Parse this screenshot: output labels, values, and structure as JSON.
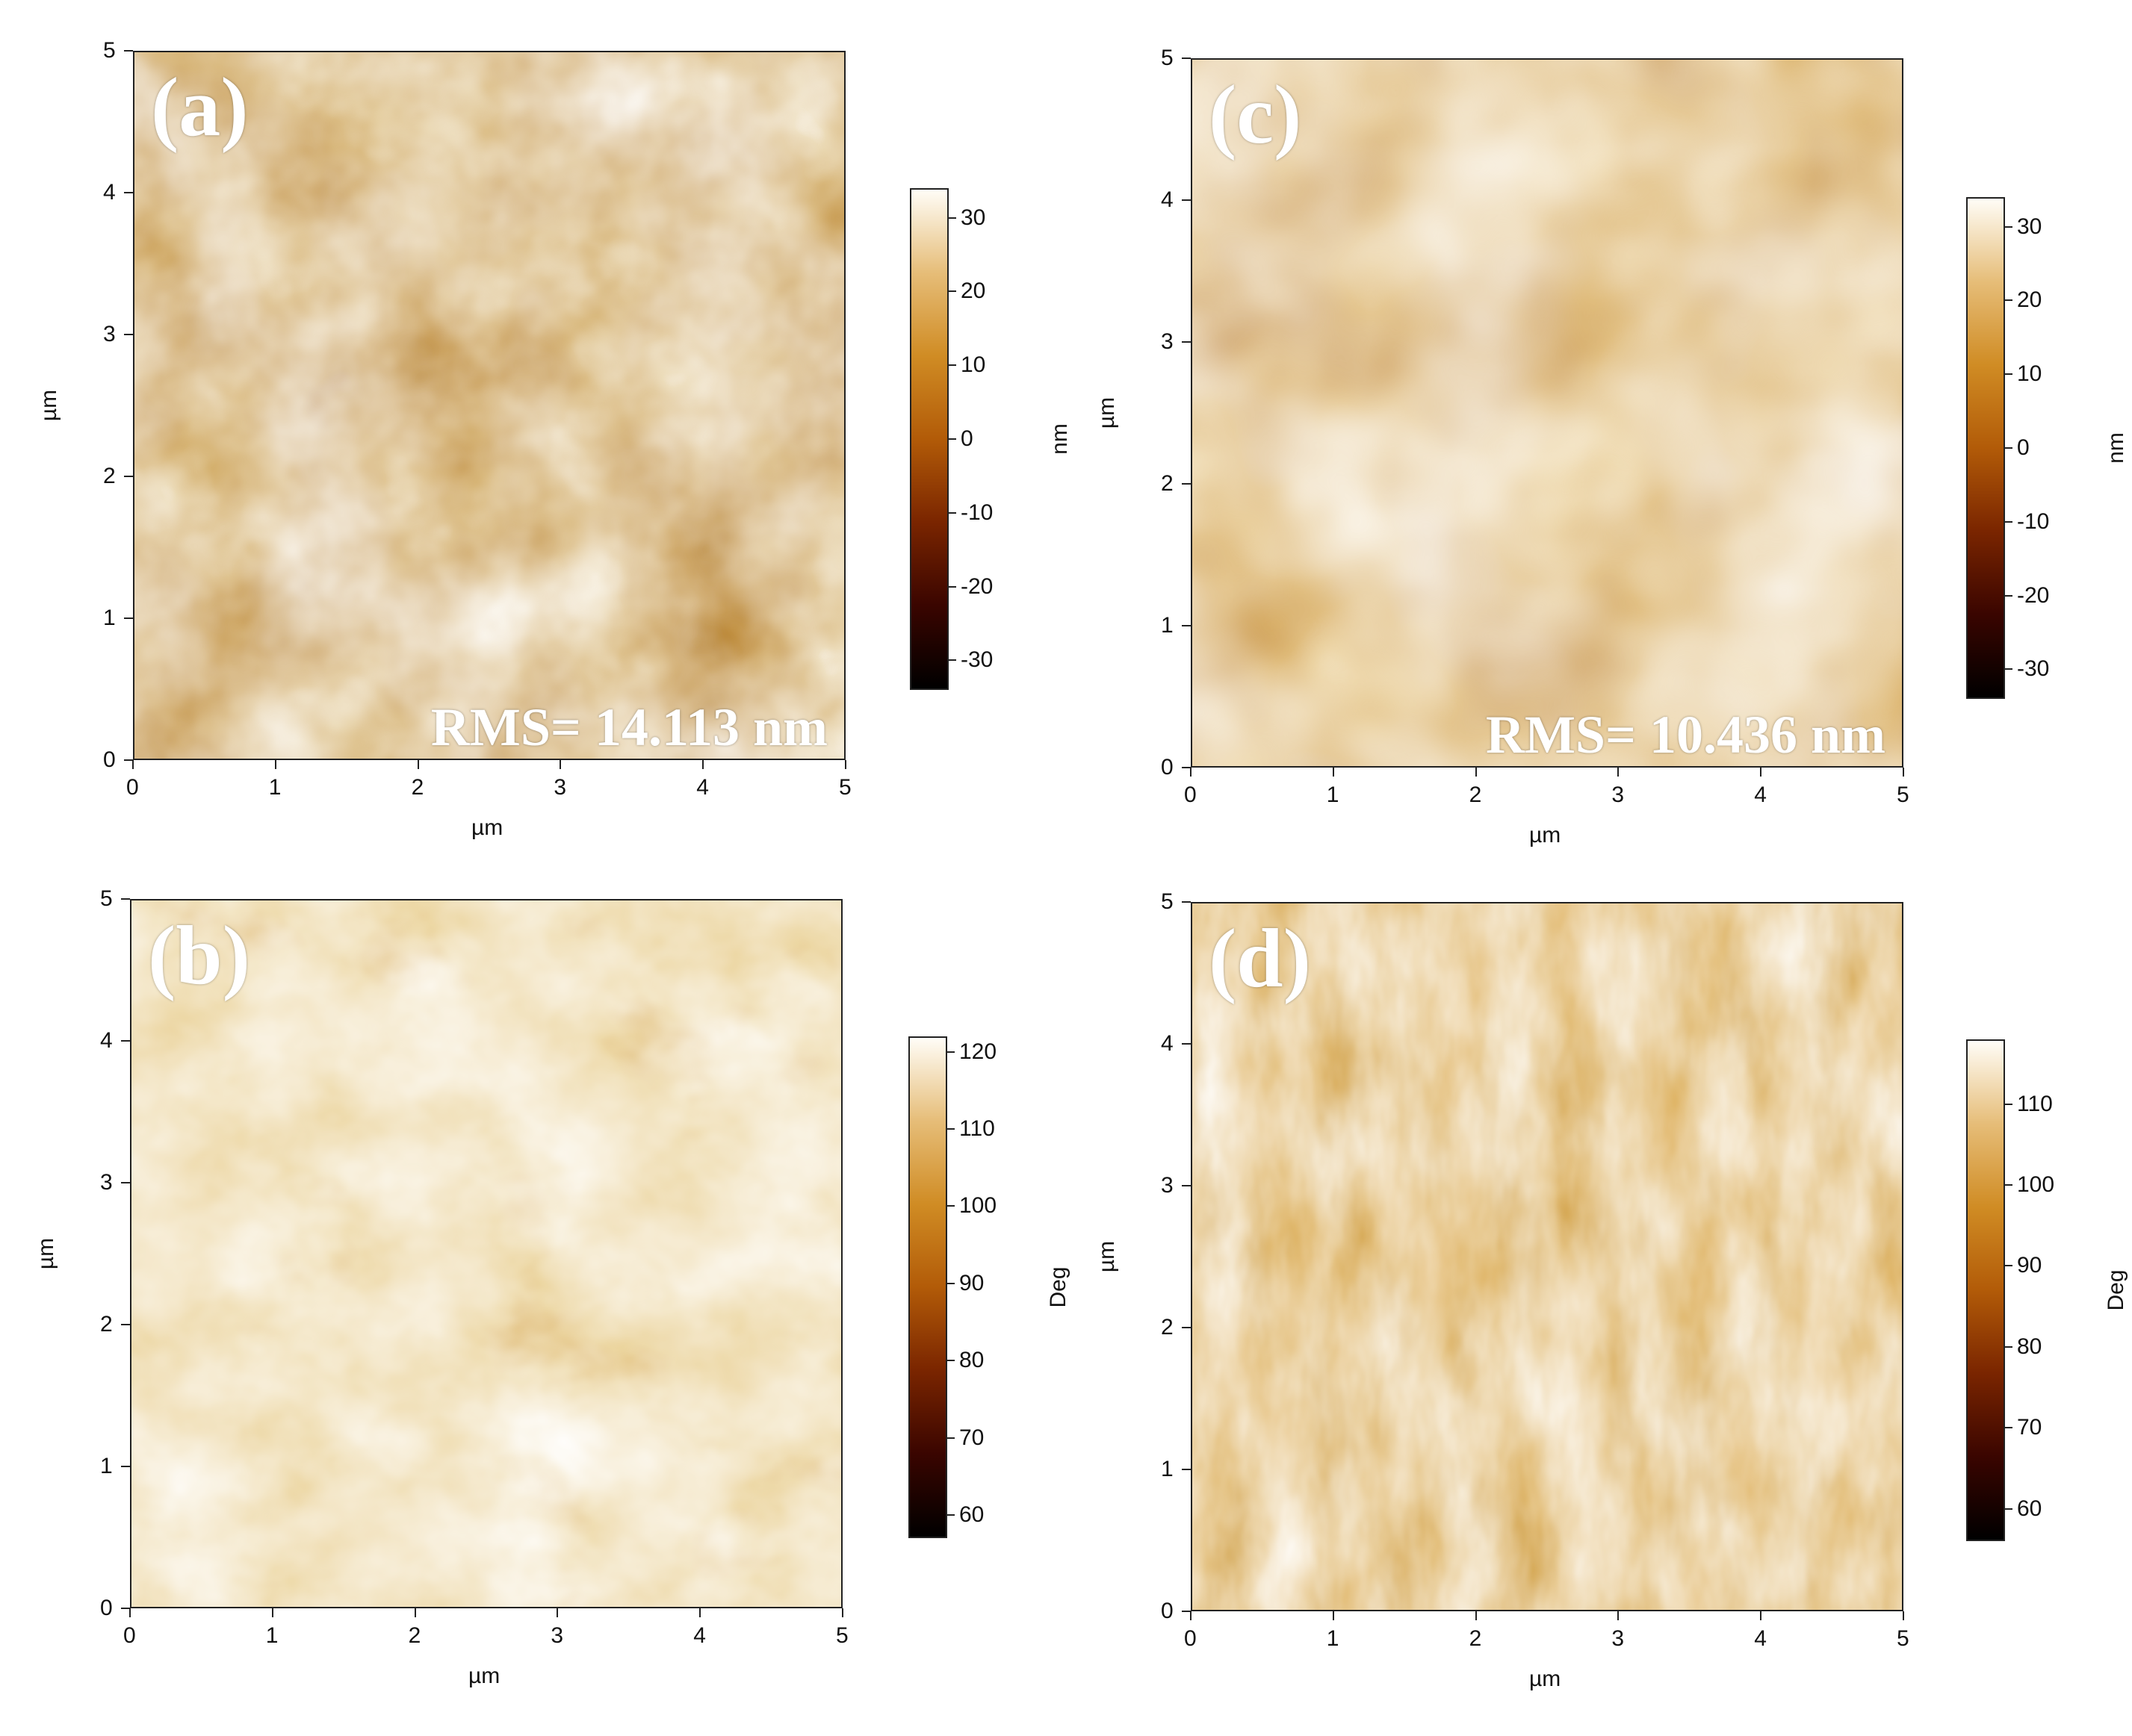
{
  "colors": {
    "afmhot": [
      "#000000",
      "#3a0500",
      "#7a2500",
      "#b25b08",
      "#d08c24",
      "#e6bd78",
      "#fffdf7"
    ]
  },
  "panels": [
    {
      "id": "a",
      "label": "(a)",
      "rms": "RMS= 14.113 nm",
      "xlabel": "µm",
      "ylabel": "µm",
      "xticks": [
        "0",
        "1",
        "2",
        "3",
        "4",
        "5"
      ],
      "yticks": [
        "0",
        "1",
        "2",
        "3",
        "4",
        "5"
      ],
      "colorbar": {
        "unit": "nm",
        "ticks": [
          "30",
          "20",
          "10",
          "0",
          "-10",
          "-20",
          "-30"
        ],
        "range": [
          -34,
          34
        ],
        "tick_values": [
          30,
          20,
          10,
          0,
          -10,
          -20,
          -30
        ]
      }
    },
    {
      "id": "c",
      "label": "(c)",
      "rms": "RMS= 10.436 nm",
      "xlabel": "µm",
      "ylabel": "µm",
      "xticks": [
        "0",
        "1",
        "2",
        "3",
        "4",
        "5"
      ],
      "yticks": [
        "0",
        "1",
        "2",
        "3",
        "4",
        "5"
      ],
      "colorbar": {
        "unit": "nm",
        "ticks": [
          "30",
          "20",
          "10",
          "0",
          "-10",
          "-20",
          "-30"
        ],
        "range": [
          -34,
          34
        ],
        "tick_values": [
          30,
          20,
          10,
          0,
          -10,
          -20,
          -30
        ]
      }
    },
    {
      "id": "b",
      "label": "(b)",
      "rms": "",
      "xlabel": "µm",
      "ylabel": "µm",
      "xticks": [
        "0",
        "1",
        "2",
        "3",
        "4",
        "5"
      ],
      "yticks": [
        "0",
        "1",
        "2",
        "3",
        "4",
        "5"
      ],
      "colorbar": {
        "unit": "Deg",
        "ticks": [
          "120",
          "110",
          "100",
          "90",
          "80",
          "70",
          "60"
        ],
        "range": [
          57,
          122
        ],
        "tick_values": [
          120,
          110,
          100,
          90,
          80,
          70,
          60
        ]
      }
    },
    {
      "id": "d",
      "label": "(d)",
      "rms": "",
      "xlabel": "µm",
      "ylabel": "µm",
      "xticks": [
        "0",
        "1",
        "2",
        "3",
        "4",
        "5"
      ],
      "yticks": [
        "0",
        "1",
        "2",
        "3",
        "4",
        "5"
      ],
      "colorbar": {
        "unit": "Deg",
        "ticks": [
          "110",
          "100",
          "90",
          "80",
          "70",
          "60"
        ],
        "range": [
          56,
          118
        ],
        "tick_values": [
          110,
          100,
          90,
          80,
          70,
          60
        ]
      }
    }
  ]
}
